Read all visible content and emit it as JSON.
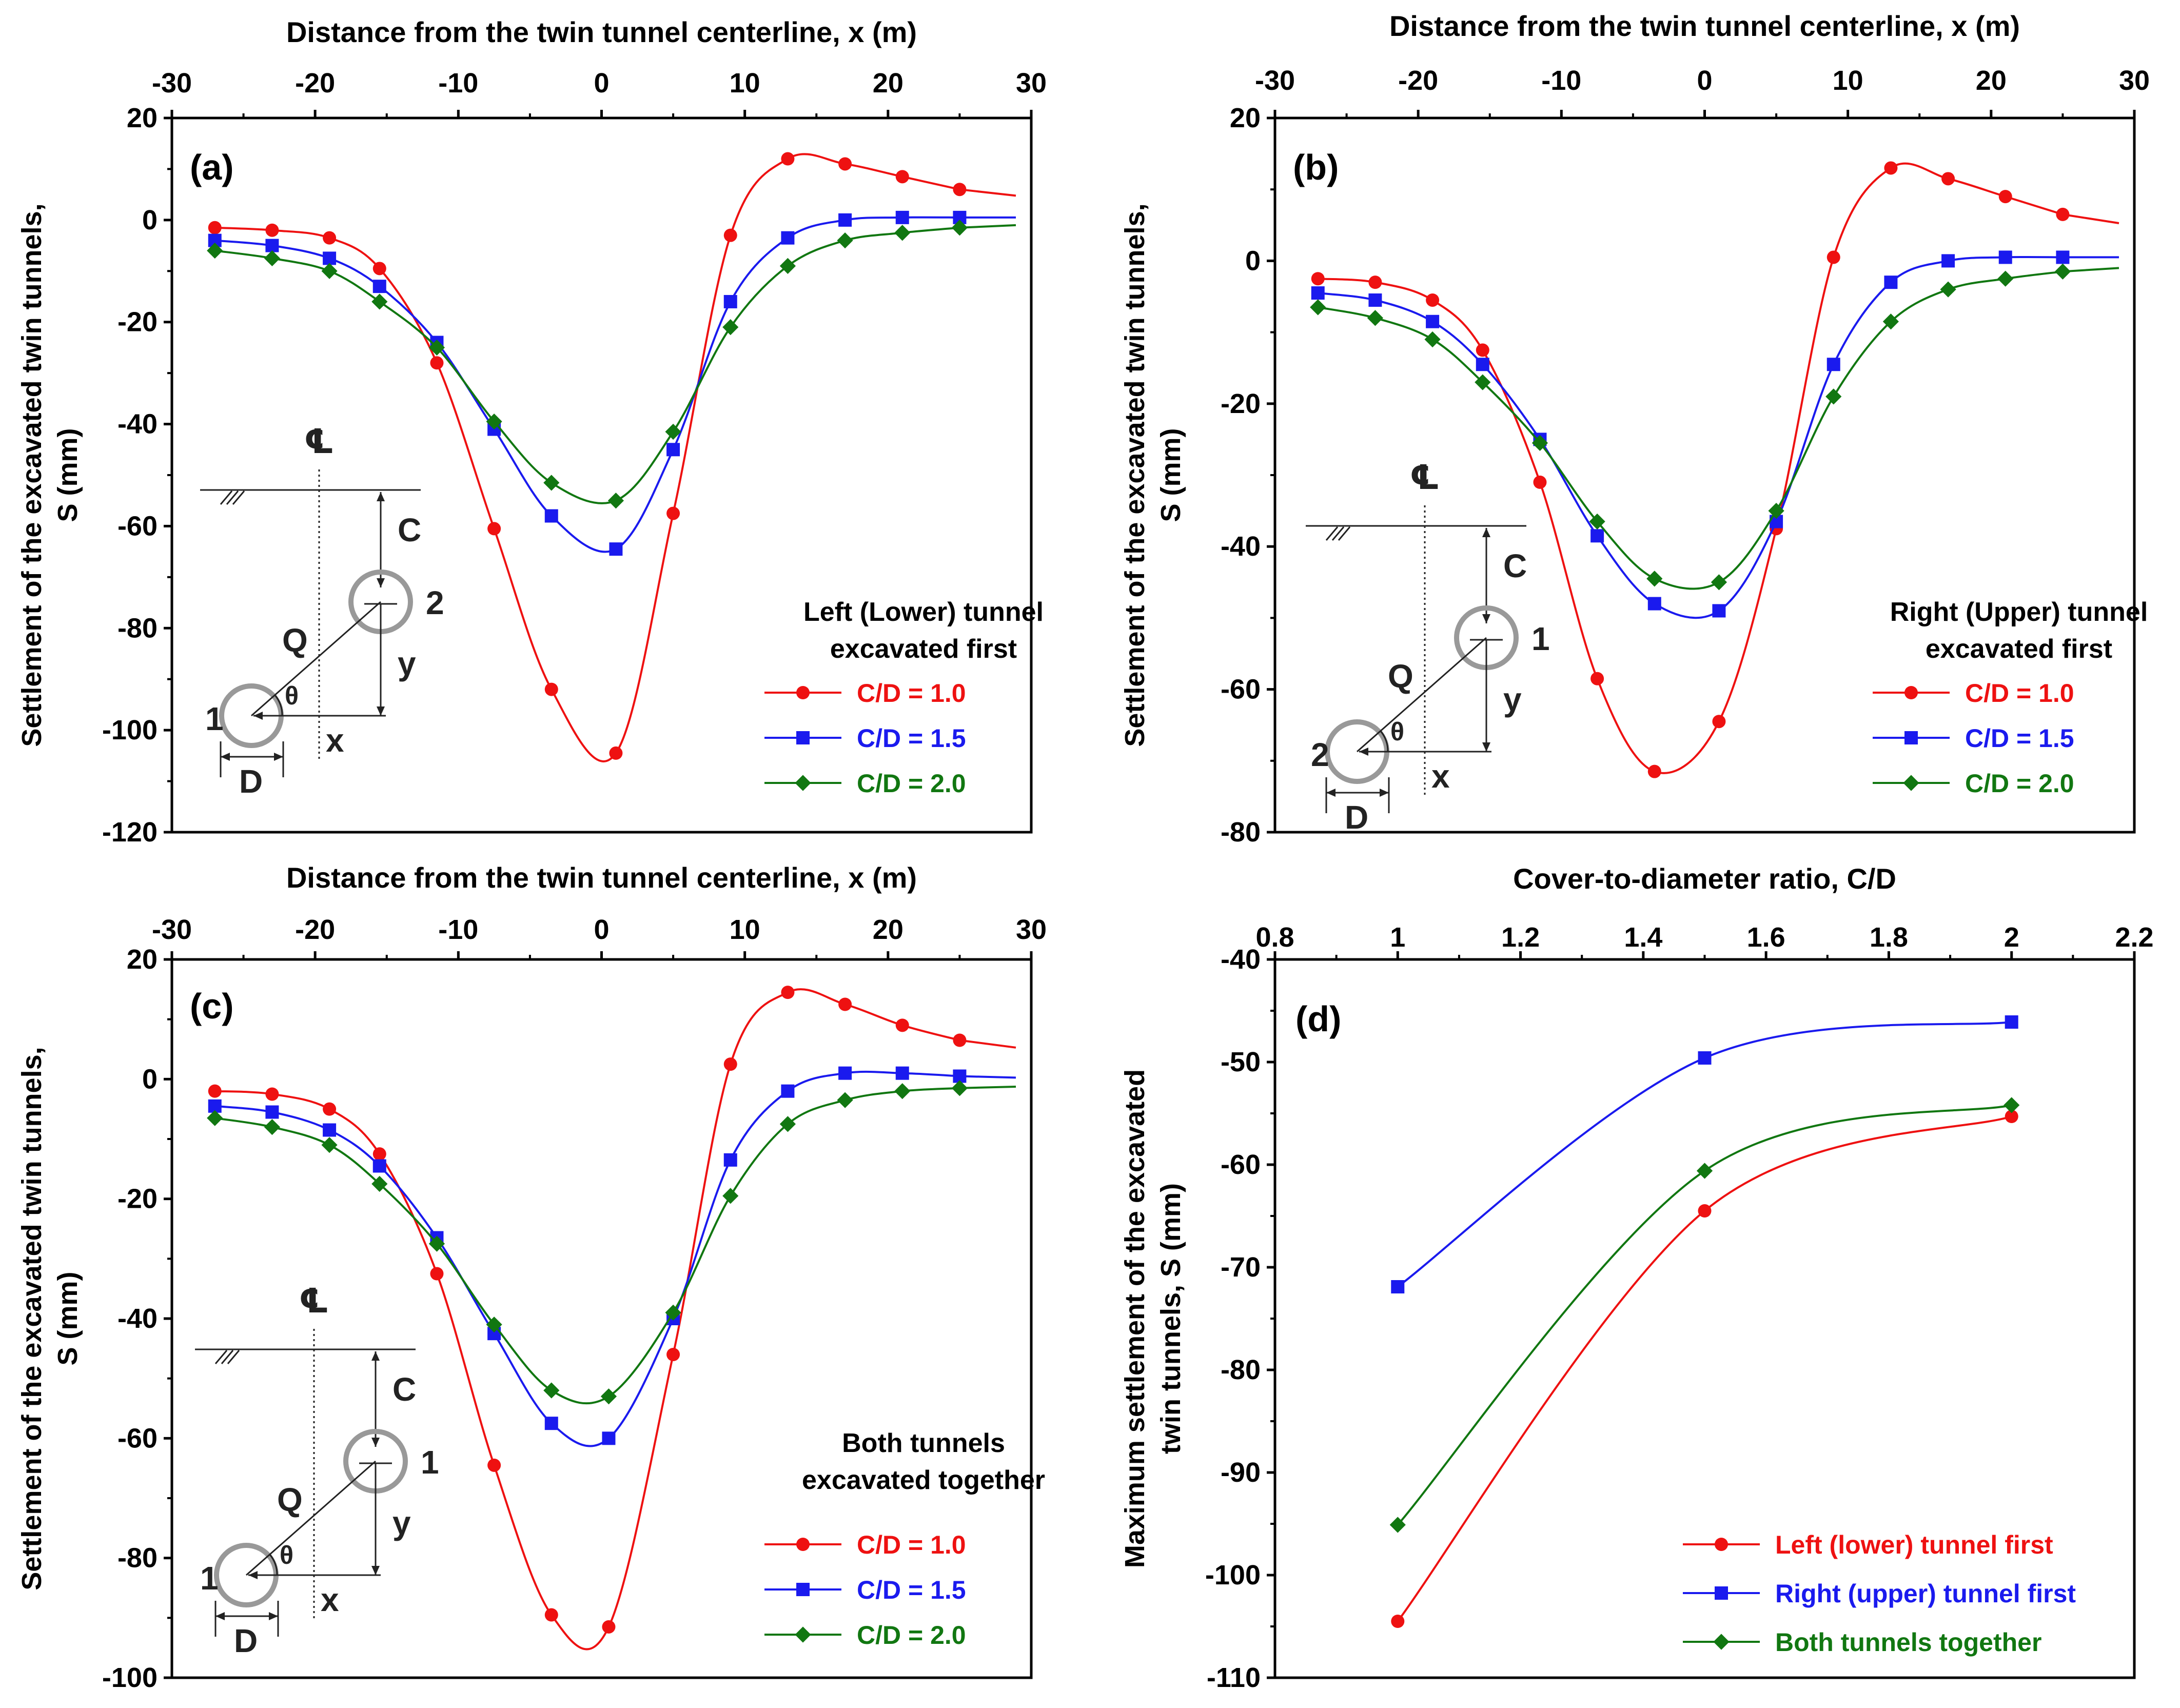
{
  "chart_data": [
    {
      "type": "line",
      "panel": "(a)",
      "xlabel": "Distance from the twin tunnel centerline, x (m)",
      "ylabel_line1": "Settlement of the excavated twin tunnels,",
      "ylabel_line2": "S (mm)",
      "xlim": [
        -30,
        30
      ],
      "ylim": [
        -120,
        20
      ],
      "xticks": [
        -30,
        -20,
        -10,
        0,
        10,
        20,
        30
      ],
      "yticks": [
        -120,
        -100,
        -80,
        -60,
        -40,
        -20,
        0,
        20
      ],
      "legend_title_line1": "Left (Lower) tunnel",
      "legend_title_line2": "excavated first",
      "legend_position": "right",
      "x": [
        -27,
        -23,
        -19,
        -15.5,
        -11.5,
        -7.5,
        -3.5,
        1,
        5,
        9,
        13,
        17,
        21,
        25
      ],
      "series": [
        {
          "name": "C/D = 1.0",
          "color": "#ee1111",
          "marker": "circle",
          "values": [
            -1.5,
            -2,
            -3.5,
            -9.5,
            -28,
            -60.5,
            -92,
            -104.5,
            -57.5,
            -3,
            12,
            11,
            8.5,
            6
          ]
        },
        {
          "name": "C/D = 1.5",
          "color": "#1a1aee",
          "marker": "square",
          "values": [
            -4,
            -5,
            -7.5,
            -13,
            -24,
            -41,
            -58,
            -64.5,
            -45,
            -16,
            -3.5,
            0,
            0.5,
            0.5
          ]
        },
        {
          "name": "C/D = 2.0",
          "color": "#117711",
          "marker": "diamond",
          "values": [
            -6,
            -7.5,
            -10,
            -16,
            -25,
            -39.5,
            -51.5,
            -55,
            -41.5,
            -21,
            -9,
            -4,
            -2.5,
            -1.5
          ]
        }
      ],
      "inset": {
        "centerline": "℄",
        "cover": "C",
        "q": "Q",
        "theta": "θ",
        "y": "y",
        "x": "x",
        "d": "D",
        "upper": "2",
        "lower": "1"
      }
    },
    {
      "type": "line",
      "panel": "(b)",
      "xlabel": "Distance from the twin tunnel centerline, x (m)",
      "ylabel_line1": "Settlement of the excavated twin tunnels,",
      "ylabel_line2": "S (mm)",
      "xlim": [
        -30,
        30
      ],
      "ylim": [
        -80,
        20
      ],
      "xticks": [
        -30,
        -20,
        -10,
        0,
        10,
        20,
        30
      ],
      "yticks": [
        -80,
        -60,
        -40,
        -20,
        0,
        20
      ],
      "legend_title_line1": "Right (Upper) tunnel",
      "legend_title_line2": "excavated first",
      "legend_position": "right",
      "x": [
        -27,
        -23,
        -19,
        -15.5,
        -11.5,
        -7.5,
        -3.5,
        1,
        5,
        9,
        13,
        17,
        21,
        25
      ],
      "series": [
        {
          "name": "C/D = 1.0",
          "color": "#ee1111",
          "marker": "circle",
          "values": [
            -2.5,
            -3,
            -5.5,
            -12.5,
            -31,
            -58.5,
            -71.5,
            -64.5,
            -37.5,
            0.5,
            13,
            11.5,
            9,
            6.5
          ]
        },
        {
          "name": "C/D = 1.5",
          "color": "#1a1aee",
          "marker": "square",
          "values": [
            -4.5,
            -5.5,
            -8.5,
            -14.5,
            -25,
            -38.5,
            -48,
            -49,
            -36.5,
            -14.5,
            -3,
            0,
            0.5,
            0.5
          ]
        },
        {
          "name": "C/D = 2.0",
          "color": "#117711",
          "marker": "diamond",
          "values": [
            -6.5,
            -8,
            -11,
            -17,
            -25.5,
            -36.5,
            -44.5,
            -45,
            -35,
            -19,
            -8.5,
            -4,
            -2.5,
            -1.5
          ]
        }
      ],
      "inset": {
        "centerline": "℄",
        "cover": "C",
        "q": "Q",
        "theta": "θ",
        "y": "y",
        "x": "x",
        "d": "D",
        "upper": "1",
        "lower": "2"
      }
    },
    {
      "type": "line",
      "panel": "(c)",
      "xlabel": "Distance from the twin tunnel centerline, x (m)",
      "ylabel_line1": "Settlement of the excavated twin tunnels,",
      "ylabel_line2": "S (mm)",
      "xlim": [
        -30,
        30
      ],
      "ylim": [
        -100,
        20
      ],
      "xticks": [
        -30,
        -20,
        -10,
        0,
        10,
        20,
        30
      ],
      "yticks": [
        -100,
        -80,
        -60,
        -40,
        -20,
        0,
        20
      ],
      "legend_title_line1": "Both tunnels",
      "legend_title_line2": "excavated together",
      "legend_position": "right",
      "x": [
        -27,
        -23,
        -19,
        -15.5,
        -11.5,
        -7.5,
        -3.5,
        0.5,
        5,
        9,
        13,
        17,
        21,
        25
      ],
      "series": [
        {
          "name": "C/D = 1.0",
          "color": "#ee1111",
          "marker": "circle",
          "values": [
            -2,
            -2.5,
            -5,
            -12.5,
            -32.5,
            -64.5,
            -89.5,
            -91.5,
            -46,
            2.5,
            14.5,
            12.5,
            9,
            6.5
          ]
        },
        {
          "name": "C/D = 1.5",
          "color": "#1a1aee",
          "marker": "square",
          "values": [
            -4.5,
            -5.5,
            -8.5,
            -14.5,
            -26.5,
            -42.5,
            -57.5,
            -60,
            -40,
            -13.5,
            -2,
            1,
            1,
            0.5
          ]
        },
        {
          "name": "C/D = 2.0",
          "color": "#117711",
          "marker": "diamond",
          "values": [
            -6.5,
            -8,
            -11,
            -17.5,
            -27.5,
            -41,
            -52,
            -53,
            -39,
            -19.5,
            -7.5,
            -3.5,
            -2,
            -1.5
          ]
        }
      ],
      "inset": {
        "centerline": "℄",
        "cover": "C",
        "q": "Q",
        "theta": "θ",
        "y": "y",
        "x": "x",
        "d": "D",
        "upper": "1",
        "lower": "1"
      }
    },
    {
      "type": "line",
      "panel": "(d)",
      "xlabel": "Cover-to-diameter ratio, C/D",
      "ylabel_line1": "Maximum settlement of the excavated",
      "ylabel_line2": "twin tunnels, S (mm)",
      "xlim": [
        0.8,
        2.2
      ],
      "ylim": [
        -110,
        -40
      ],
      "xticks": [
        0.8,
        1,
        1.2,
        1.4,
        1.6,
        1.8,
        2,
        2.2
      ],
      "yticks": [
        -110,
        -100,
        -90,
        -80,
        -70,
        -60,
        -50,
        -40
      ],
      "legend_position": "bottom-right",
      "x": [
        1,
        1.5,
        2
      ],
      "series": [
        {
          "name": "Left (lower) tunnel first",
          "color": "#ee1111",
          "marker": "circle",
          "values": [
            -104.5,
            -64.5,
            -55.3
          ]
        },
        {
          "name": "Right (upper) tunnel first",
          "color": "#1a1aee",
          "marker": "square",
          "values": [
            -71.9,
            -49.6,
            -46.1
          ]
        },
        {
          "name": "Both tunnels together",
          "color": "#117711",
          "marker": "diamond",
          "values": [
            -95.1,
            -60.6,
            -54.2
          ]
        }
      ]
    }
  ]
}
